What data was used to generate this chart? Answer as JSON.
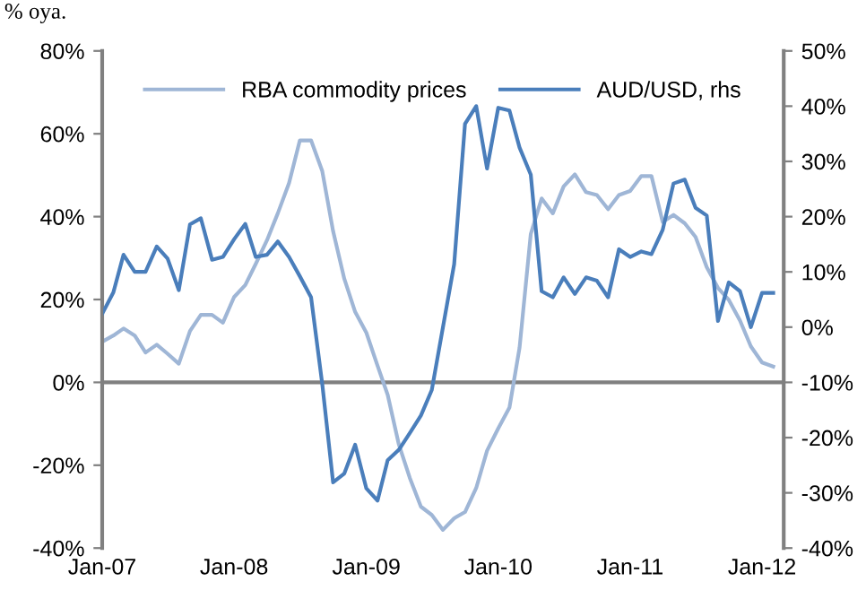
{
  "chart_data": {
    "type": "line",
    "ylabel": "% oya.",
    "x": [
      "2007-01",
      "2007-02",
      "2007-03",
      "2007-04",
      "2007-05",
      "2007-06",
      "2007-07",
      "2007-08",
      "2007-09",
      "2007-10",
      "2007-11",
      "2007-12",
      "2008-01",
      "2008-02",
      "2008-03",
      "2008-04",
      "2008-05",
      "2008-06",
      "2008-07",
      "2008-08",
      "2008-09",
      "2008-10",
      "2008-11",
      "2008-12",
      "2009-01",
      "2009-02",
      "2009-03",
      "2009-04",
      "2009-05",
      "2009-06",
      "2009-07",
      "2009-08",
      "2009-09",
      "2009-10",
      "2009-11",
      "2009-12",
      "2010-01",
      "2010-02",
      "2010-03",
      "2010-04",
      "2010-05",
      "2010-06",
      "2010-07",
      "2010-08",
      "2010-09",
      "2010-10",
      "2010-11",
      "2010-12",
      "2011-01",
      "2011-02",
      "2011-03",
      "2011-04",
      "2011-05",
      "2011-06",
      "2011-07",
      "2011-08",
      "2011-09",
      "2011-10",
      "2011-11",
      "2011-12",
      "2012-01",
      "2012-02"
    ],
    "series": [
      {
        "name": "RBA commodity prices",
        "color": "#9fb6d6",
        "values": [
          9.8,
          11.3,
          13.0,
          11.3,
          7.2,
          9.1,
          6.9,
          4.5,
          12.4,
          16.3,
          16.3,
          14.4,
          20.6,
          23.5,
          28.6,
          34.3,
          40.8,
          48.1,
          58.4,
          58.4,
          51,
          36.5,
          25,
          17,
          12,
          4,
          -3,
          -15,
          -23,
          -30,
          -32,
          -35.6,
          -32.8,
          -31.3,
          -25.5,
          -16.5,
          -11.1,
          -6.1,
          8.4,
          35.8,
          44.4,
          40.8,
          47.3,
          50.2,
          45.9,
          45.2,
          41.8,
          45.2,
          46.2,
          49.8,
          49.8,
          38.7,
          40.4,
          38.4,
          35.1,
          27.8,
          22.8,
          19.9,
          14.9,
          8.7,
          4.8,
          3.8
        ]
      },
      {
        "name": "AUD/USD, rhs",
        "color": "#4a7ebb",
        "axis": "y2",
        "values": [
          2.4,
          6.3,
          13.1,
          10.0,
          10.0,
          14.6,
          12.4,
          6.7,
          18.6,
          19.7,
          12.2,
          12.7,
          15.9,
          18.7,
          12.7,
          13.1,
          15.5,
          12.7,
          9.2,
          5.4,
          -10.3,
          -28.1,
          -26.5,
          -21.3,
          -29.2,
          -31.4,
          -24.1,
          -22.2,
          -19.2,
          -16.0,
          -11.4,
          0,
          11.4,
          36.8,
          40.0,
          28.7,
          39.7,
          39.2,
          32.5,
          27.6,
          6.5,
          5.4,
          9.0,
          6.0,
          9.0,
          8.4,
          5.4,
          14.1,
          12.7,
          13.7,
          13.2,
          17.6,
          26.0,
          26.7,
          21.6,
          20.2,
          1.1,
          8.1,
          6.5,
          0,
          6.2,
          6.2
        ]
      }
    ],
    "xlim": [
      "2007-01",
      "2012-03"
    ],
    "xticks": [
      {
        "value": "2007-01",
        "label": "Jan-07"
      },
      {
        "value": "2008-01",
        "label": "Jan-08"
      },
      {
        "value": "2009-01",
        "label": "Jan-09"
      },
      {
        "value": "2010-01",
        "label": "Jan-10"
      },
      {
        "value": "2011-01",
        "label": "Jan-11"
      },
      {
        "value": "2012-01",
        "label": "Jan-12"
      }
    ],
    "ylim": [
      -40,
      80
    ],
    "yticks": [
      {
        "value": -40,
        "label": "-40%"
      },
      {
        "value": -20,
        "label": "-20%"
      },
      {
        "value": 0,
        "label": "0%"
      },
      {
        "value": 20,
        "label": "20%"
      },
      {
        "value": 40,
        "label": "40%"
      },
      {
        "value": 60,
        "label": "60%"
      },
      {
        "value": 80,
        "label": "80%"
      }
    ],
    "y2lim": [
      -40,
      50
    ],
    "y2ticks": [
      {
        "value": -40,
        "label": "-40%"
      },
      {
        "value": -30,
        "label": "-30%"
      },
      {
        "value": -20,
        "label": "-20%"
      },
      {
        "value": -10,
        "label": "-10%"
      },
      {
        "value": 0,
        "label": "0%"
      },
      {
        "value": 10,
        "label": "10%"
      },
      {
        "value": 20,
        "label": "20%"
      },
      {
        "value": 30,
        "label": "30%"
      },
      {
        "value": 40,
        "label": "40%"
      },
      {
        "value": 50,
        "label": "50%"
      }
    ],
    "ref_lines": [
      {
        "axis": "y",
        "value": 0,
        "color": "#808080"
      }
    ],
    "legend": "top",
    "grid": false,
    "marker": "none",
    "line_style": "solid"
  }
}
